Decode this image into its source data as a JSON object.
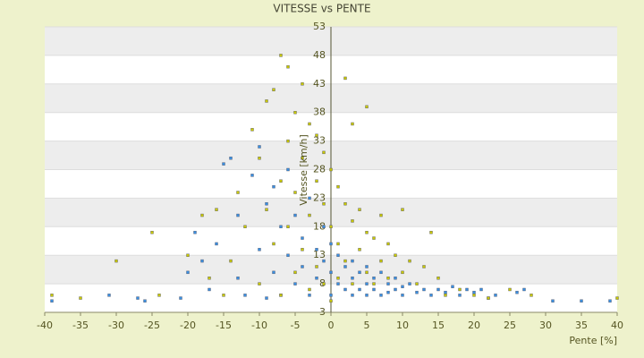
{
  "chart_data": {
    "type": "scatter",
    "title": "VITESSE vs PENTE",
    "x_label": "Pente [%]",
    "y_label": "Vitesse [km/h]",
    "xlim": [
      -40,
      40
    ],
    "xticks": [
      -40,
      -35,
      -30,
      -25,
      -20,
      -15,
      -10,
      -5,
      0,
      5,
      10,
      15,
      20,
      25,
      30,
      35,
      40
    ],
    "ylim": [
      3,
      53
    ],
    "yticks": [
      3,
      8,
      13,
      18,
      23,
      28,
      33,
      38,
      43,
      48,
      53
    ],
    "grid": true,
    "series": [
      {
        "color": "#3a8fe0",
        "x": [
          -39,
          -31,
          -27,
          -26,
          -21,
          -20,
          -19,
          -18,
          -17,
          -16,
          -15,
          -14,
          -13,
          -13,
          -12,
          -11,
          -10,
          -10,
          -9,
          -9,
          -8,
          -8,
          -7,
          -7,
          -6,
          -6,
          -5,
          -5,
          -4,
          -4,
          -3,
          -3,
          -2,
          -2,
          -1,
          -1,
          0,
          0,
          0,
          1,
          1,
          2,
          2,
          3,
          3,
          3,
          4,
          4,
          5,
          5,
          5,
          6,
          6,
          7,
          7,
          8,
          8,
          9,
          9,
          10,
          10,
          11,
          12,
          13,
          14,
          15,
          16,
          17,
          18,
          19,
          20,
          21,
          22,
          23,
          26,
          27,
          31,
          35,
          39
        ],
        "values": [
          5,
          6,
          5.5,
          5,
          5.5,
          10,
          17,
          12,
          7,
          15,
          29,
          30,
          20,
          9,
          6,
          27,
          32,
          14,
          22,
          5.5,
          25,
          10,
          18,
          6,
          28,
          13,
          20,
          8,
          16,
          11,
          23,
          6,
          14,
          9,
          18,
          12,
          15,
          10,
          6,
          13,
          8,
          11,
          7,
          12,
          9,
          6,
          10,
          7,
          11,
          8,
          6,
          9,
          7,
          10,
          6,
          8,
          6.5,
          7,
          9,
          7.5,
          6,
          8,
          6.5,
          7,
          6,
          7,
          6.5,
          7.5,
          6,
          7,
          6.5,
          7,
          5.5,
          6,
          6.5,
          7,
          5,
          5,
          5
        ]
      },
      {
        "color": "#c8c800",
        "x": [
          -39,
          -35,
          -30,
          -25,
          -24,
          -20,
          -18,
          -17,
          -16,
          -15,
          -14,
          -13,
          -12,
          -11,
          -10,
          -10,
          -9,
          -9,
          -8,
          -8,
          -7,
          -7,
          -7,
          -6,
          -6,
          -6,
          -5,
          -5,
          -5,
          -4,
          -4,
          -4,
          -3,
          -3,
          -3,
          -2,
          -2,
          -2,
          -1,
          -1,
          -1,
          0,
          0,
          0,
          1,
          1,
          1,
          2,
          2,
          2,
          3,
          3,
          3,
          4,
          4,
          5,
          5,
          5,
          6,
          6,
          7,
          7,
          8,
          8,
          9,
          10,
          10,
          11,
          12,
          13,
          14,
          15,
          16,
          18,
          20,
          22,
          25,
          28,
          40
        ],
        "values": [
          6,
          5.5,
          12,
          17,
          6,
          13,
          20,
          9,
          21,
          6,
          12,
          24,
          18,
          35,
          30,
          8,
          40,
          21,
          42,
          15,
          48,
          26,
          6,
          46,
          33,
          18,
          38,
          24,
          10,
          43,
          30,
          14,
          36,
          20,
          7,
          34,
          26,
          11,
          31,
          22,
          8,
          28,
          18,
          5,
          25,
          15,
          9,
          44,
          22,
          12,
          36,
          19,
          8,
          21,
          14,
          39,
          17,
          10,
          16,
          8,
          20,
          12,
          15,
          9,
          13,
          21,
          10,
          12,
          8,
          11,
          17,
          9,
          6,
          7,
          6,
          5.5,
          7,
          6,
          5.5
        ]
      }
    ]
  }
}
